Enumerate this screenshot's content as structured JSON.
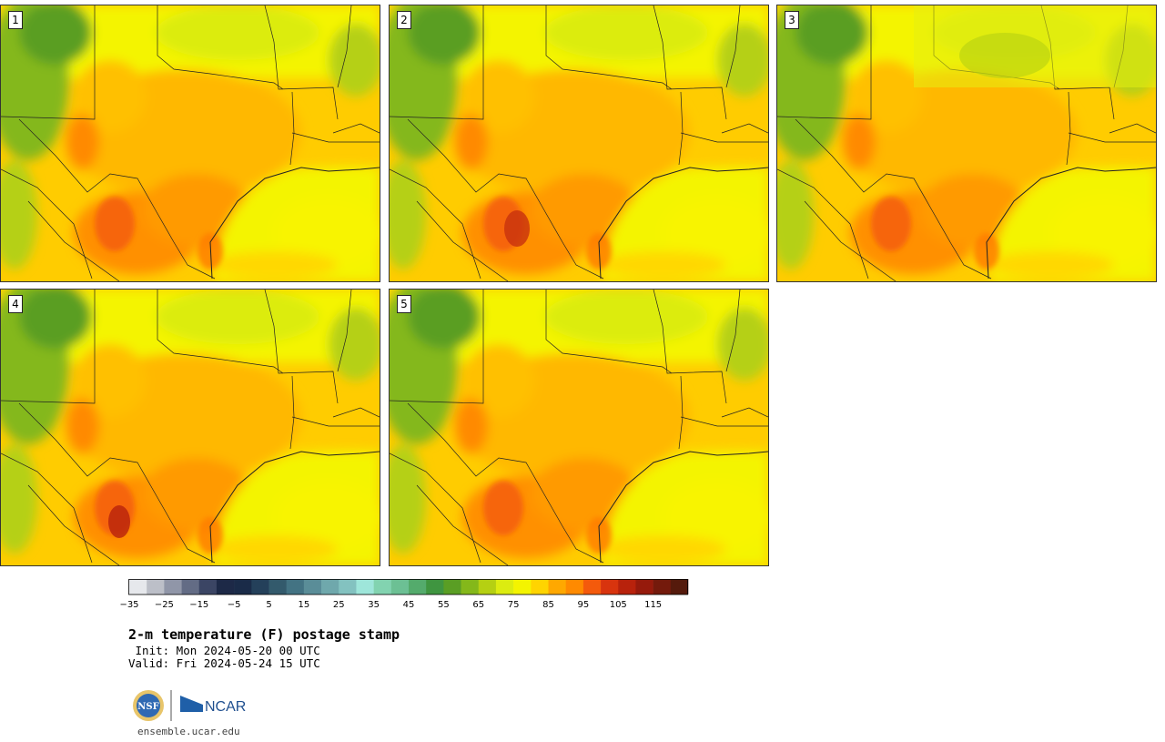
{
  "panels": [
    {
      "label": "1"
    },
    {
      "label": "2"
    },
    {
      "label": "3"
    },
    {
      "label": "4"
    },
    {
      "label": "5"
    }
  ],
  "colorbar": {
    "colors": [
      "#e6e8ec",
      "#bcbfc8",
      "#9096a8",
      "#636c85",
      "#3b4564",
      "#1d2947",
      "#1a2b48",
      "#24405a",
      "#335a6c",
      "#437383",
      "#5a8d98",
      "#6fa8ac",
      "#83c2c0",
      "#9ee6da",
      "#82d3b0",
      "#6cc094",
      "#54ab6c",
      "#3f9540",
      "#5a9e24",
      "#84b81a",
      "#b5d012",
      "#dcec10",
      "#f4f400",
      "#ffd400",
      "#ffa800",
      "#ff8a00",
      "#f45a0c",
      "#d8340e",
      "#b8220c",
      "#961a0c",
      "#741a0c",
      "#551a0c"
    ],
    "tick_labels": [
      "−35",
      "−25",
      "−15",
      "−5",
      "5",
      "15",
      "25",
      "35",
      "45",
      "55",
      "65",
      "75",
      "85",
      "95",
      "105",
      "115"
    ]
  },
  "title": "2-m temperature (F) postage stamp",
  "init": " Init: Mon 2024-05-20 00 UTC",
  "valid": "Valid: Fri 2024-05-24 15 UTC",
  "logo": {
    "nsf_text": "NSF",
    "ncar_text": "NCAR"
  },
  "site": "ensemble.ucar.edu"
}
